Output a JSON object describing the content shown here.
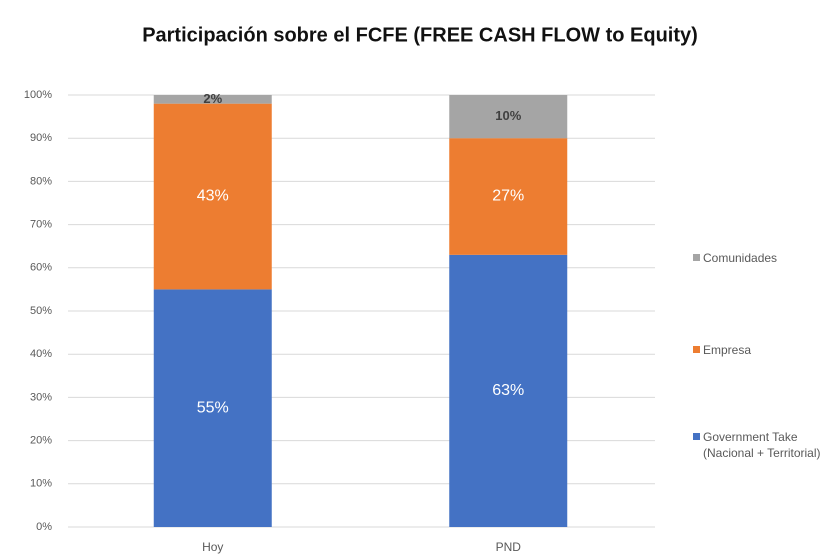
{
  "chart_data": {
    "type": "stacked_bar",
    "title": "Participación sobre el FCFE (FREE CASH FLOW to Equity)",
    "categories": [
      "Hoy",
      "PND"
    ],
    "series": [
      {
        "name": "Government Take (Nacional + Territorial)",
        "color": "#4472c4",
        "values": [
          55,
          63
        ],
        "value_labels": [
          "55%",
          "63%"
        ]
      },
      {
        "name": "Empresa",
        "color": "#ed7d31",
        "values": [
          43,
          27
        ],
        "value_labels": [
          "43%",
          "27%"
        ]
      },
      {
        "name": "Comunidades",
        "color": "#a5a5a5",
        "values": [
          2,
          10
        ],
        "value_labels": [
          "2%",
          "10%"
        ]
      }
    ],
    "ylim": [
      0,
      100
    ],
    "yticks": [
      {
        "value": 0,
        "label": "0%"
      },
      {
        "value": 10,
        "label": "10%"
      },
      {
        "value": 20,
        "label": "20%"
      },
      {
        "value": 30,
        "label": "30%"
      },
      {
        "value": 40,
        "label": "40%"
      },
      {
        "value": 50,
        "label": "50%"
      },
      {
        "value": 60,
        "label": "60%"
      },
      {
        "value": 70,
        "label": "70%"
      },
      {
        "value": 80,
        "label": "80%"
      },
      {
        "value": 90,
        "label": "90%"
      },
      {
        "value": 100,
        "label": "100%"
      }
    ],
    "grid": true,
    "legend": "right"
  }
}
